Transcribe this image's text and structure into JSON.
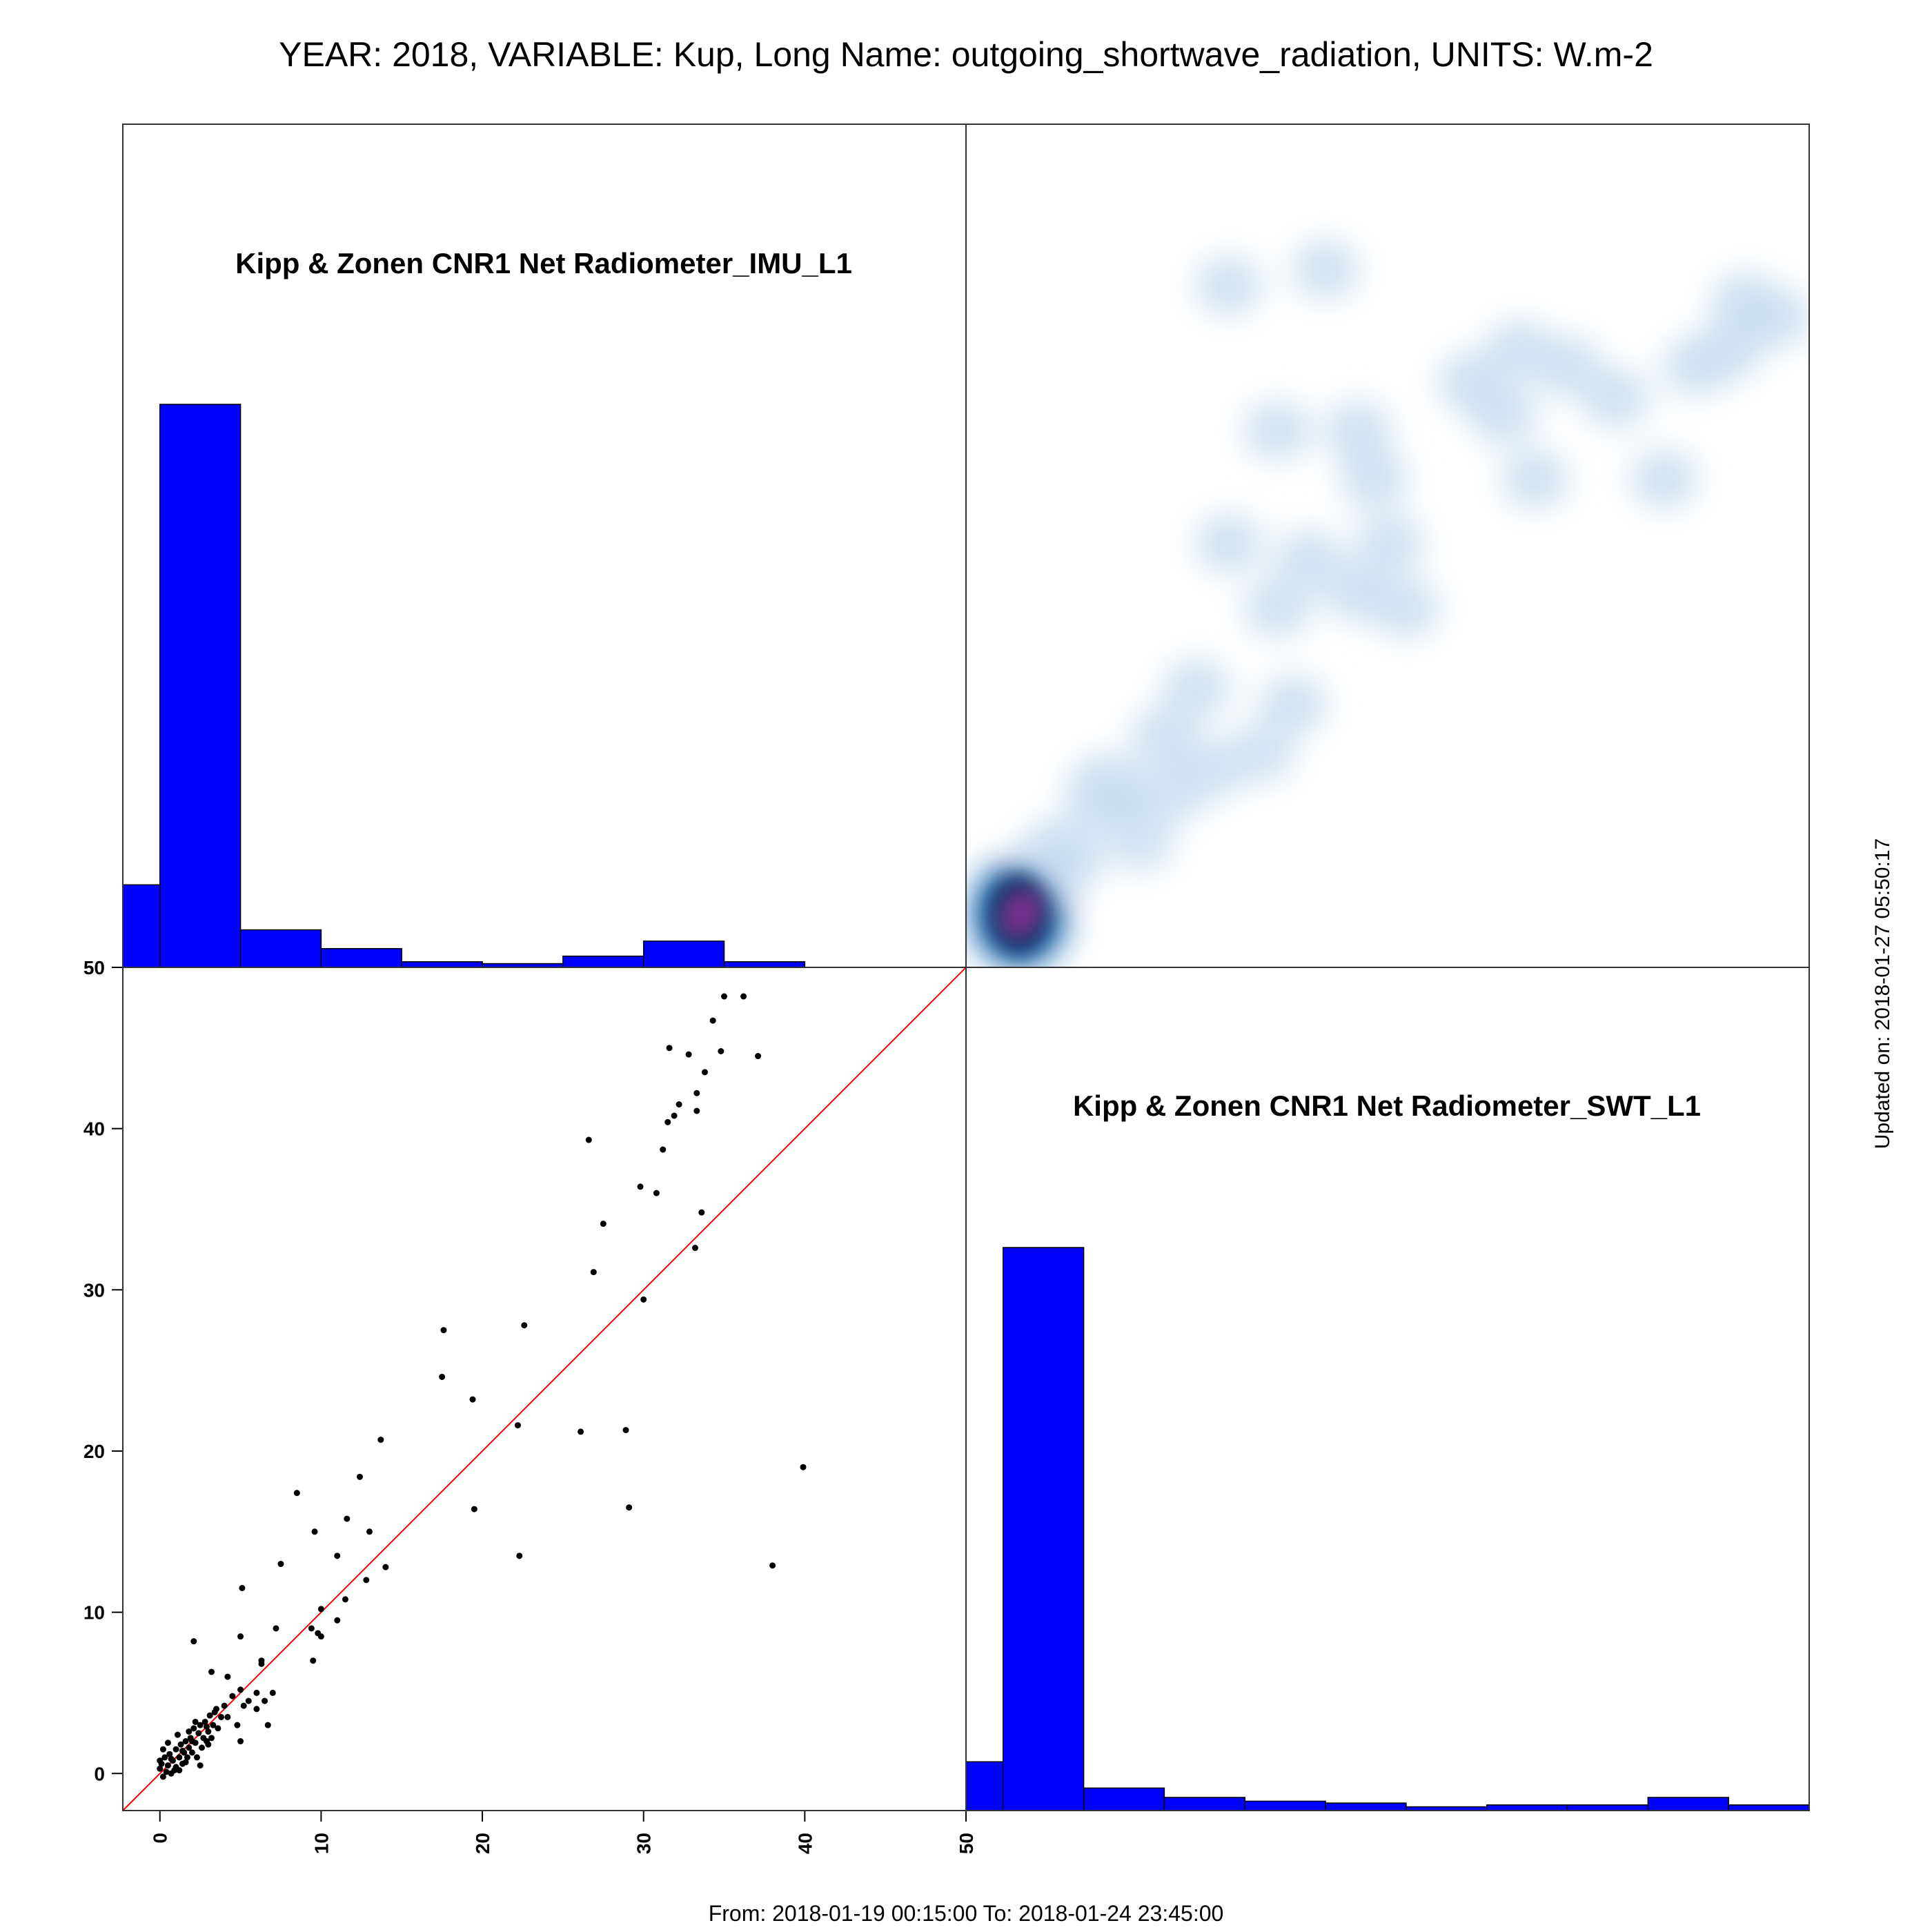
{
  "page": {
    "title": "YEAR: 2018, VARIABLE: Kup, Long Name: outgoing_shortwave_radiation, UNITS: W.m-2",
    "updated": "Updated on: 2018-01-27 05:50:17",
    "range": "From: 2018-01-19 00:15:00 To: 2018-01-24 23:45:00"
  },
  "colors": {
    "histogram_fill": "#0000ff",
    "identity_line": "#ff0000",
    "points": "#000000",
    "density_low": "#c6dbef",
    "density_mid": "#2171b5",
    "density_high": "#08306b",
    "density_peak": "#7b3294"
  },
  "chart_data": [
    {
      "type": "bar",
      "panel": "histogram",
      "label": "Kipp & Zonen CNR1 Net Radiometer_IMU_L1",
      "bin_edges": [
        -2.3,
        0,
        5,
        10,
        15,
        20,
        25,
        30,
        35,
        40
      ],
      "counts": [
        44,
        300,
        20,
        10,
        3,
        2,
        6,
        14,
        3
      ]
    },
    {
      "type": "heatmap",
      "panel": "density",
      "xlim": [
        -2.3,
        50
      ],
      "ylim": [
        -2.3,
        50
      ],
      "blobs": [
        {
          "x": 1.0,
          "y": 1.0,
          "w": 1.0
        },
        {
          "x": 3.5,
          "y": 4.5,
          "w": 0.5
        },
        {
          "x": 6.5,
          "y": 8.5,
          "w": 0.45
        },
        {
          "x": 10,
          "y": 12,
          "w": 0.3
        },
        {
          "x": 12,
          "y": 15,
          "w": 0.3
        },
        {
          "x": 8.5,
          "y": 5.5,
          "w": 0.25
        },
        {
          "x": 10.5,
          "y": 8.5,
          "w": 0.25
        },
        {
          "x": 13,
          "y": 10,
          "w": 0.25
        },
        {
          "x": 16,
          "y": 11,
          "w": 0.25
        },
        {
          "x": 18,
          "y": 14,
          "w": 0.3
        },
        {
          "x": 14,
          "y": 24,
          "w": 0.3
        },
        {
          "x": 17,
          "y": 20,
          "w": 0.3
        },
        {
          "x": 22,
          "y": 21,
          "w": 0.3
        },
        {
          "x": 25,
          "y": 20,
          "w": 0.3
        },
        {
          "x": 24,
          "y": 24,
          "w": 0.3
        },
        {
          "x": 19,
          "y": 23,
          "w": 0.3
        },
        {
          "x": 17,
          "y": 31,
          "w": 0.3
        },
        {
          "x": 22,
          "y": 31,
          "w": 0.3
        },
        {
          "x": 23,
          "y": 28,
          "w": 0.3
        },
        {
          "x": 14,
          "y": 40,
          "w": 0.3
        },
        {
          "x": 20,
          "y": 41,
          "w": 0.3
        },
        {
          "x": 31,
          "y": 32,
          "w": 0.3
        },
        {
          "x": 33,
          "y": 28,
          "w": 0.3
        },
        {
          "x": 32,
          "y": 36,
          "w": 0.3
        },
        {
          "x": 35,
          "y": 35,
          "w": 0.3
        },
        {
          "x": 38,
          "y": 33,
          "w": 0.3
        },
        {
          "x": 41,
          "y": 28,
          "w": 0.3
        },
        {
          "x": 43,
          "y": 35,
          "w": 0.3
        },
        {
          "x": 45,
          "y": 36,
          "w": 0.3
        },
        {
          "x": 46,
          "y": 39,
          "w": 0.3
        },
        {
          "x": 48,
          "y": 38,
          "w": 0.3
        },
        {
          "x": 29,
          "y": 34,
          "w": 0.3
        }
      ]
    },
    {
      "type": "scatter",
      "panel": "scatter",
      "xlim": [
        -2.3,
        50
      ],
      "ylim": [
        -2.3,
        50
      ],
      "identity_line": true,
      "x_ticks": [
        0,
        10,
        20,
        30,
        40,
        50
      ],
      "y_ticks": [
        0,
        10,
        20,
        30,
        40,
        50
      ],
      "points": [
        [
          0.0,
          0.3
        ],
        [
          0.0,
          0.8
        ],
        [
          0.2,
          -0.2
        ],
        [
          0.3,
          1.0
        ],
        [
          0.5,
          0.5
        ],
        [
          0.6,
          1.2
        ],
        [
          0.7,
          0.0
        ],
        [
          0.8,
          0.8
        ],
        [
          1.0,
          1.5
        ],
        [
          1.0,
          0.4
        ],
        [
          1.2,
          1.0
        ],
        [
          1.3,
          1.8
        ],
        [
          1.4,
          0.6
        ],
        [
          1.5,
          1.3
        ],
        [
          1.6,
          2.0
        ],
        [
          1.7,
          1.0
        ],
        [
          1.8,
          1.6
        ],
        [
          1.9,
          2.2
        ],
        [
          2.0,
          1.3
        ],
        [
          2.1,
          2.8
        ],
        [
          2.2,
          1.9
        ],
        [
          2.3,
          1.0
        ],
        [
          2.4,
          2.5
        ],
        [
          2.5,
          3.0
        ],
        [
          2.6,
          1.6
        ],
        [
          2.7,
          2.2
        ],
        [
          2.8,
          3.2
        ],
        [
          2.9,
          2.0
        ],
        [
          3.0,
          2.6
        ],
        [
          3.1,
          3.6
        ],
        [
          3.2,
          2.2
        ],
        [
          3.3,
          3.0
        ],
        [
          3.5,
          4.0
        ],
        [
          3.6,
          2.8
        ],
        [
          3.8,
          3.5
        ],
        [
          0.4,
          0.1
        ],
        [
          0.9,
          0.2
        ],
        [
          1.1,
          2.4
        ],
        [
          1.6,
          0.7
        ],
        [
          2.0,
          2.0
        ],
        [
          2.5,
          0.5
        ],
        [
          3.0,
          1.8
        ],
        [
          0.2,
          1.5
        ],
        [
          0.5,
          1.9
        ],
        [
          1.8,
          2.6
        ],
        [
          2.2,
          3.2
        ],
        [
          0.1,
          0.6
        ],
        [
          1.4,
          1.4
        ],
        [
          2.9,
          2.9
        ],
        [
          3.4,
          3.8
        ],
        [
          0.7,
          0.9
        ],
        [
          1.2,
          0.2
        ],
        [
          4.0,
          4.2
        ],
        [
          4.2,
          3.5
        ],
        [
          4.5,
          4.8
        ],
        [
          4.8,
          3.0
        ],
        [
          5.0,
          2.0
        ],
        [
          5.0,
          5.2
        ],
        [
          5.2,
          4.2
        ],
        [
          5.5,
          4.5
        ],
        [
          6.0,
          4.0
        ],
        [
          6.0,
          5.0
        ],
        [
          6.5,
          4.5
        ],
        [
          6.3,
          6.8
        ],
        [
          6.7,
          3.0
        ],
        [
          7.0,
          5.0
        ],
        [
          7.5,
          13.0
        ],
        [
          2.1,
          8.2
        ],
        [
          3.2,
          6.3
        ],
        [
          4.2,
          6.0
        ],
        [
          5.0,
          8.5
        ],
        [
          5.1,
          11.5
        ],
        [
          6.3,
          7.0
        ],
        [
          7.2,
          9.0
        ],
        [
          9.4,
          9.0
        ],
        [
          9.5,
          7.0
        ],
        [
          9.8,
          8.7
        ],
        [
          10.0,
          8.5
        ],
        [
          10.0,
          10.2
        ],
        [
          11.0,
          9.5
        ],
        [
          11.0,
          13.5
        ],
        [
          11.5,
          10.8
        ],
        [
          9.6,
          15.0
        ],
        [
          11.6,
          15.8
        ],
        [
          12.4,
          18.4
        ],
        [
          12.8,
          12.0
        ],
        [
          13.0,
          15.0
        ],
        [
          13.7,
          20.7
        ],
        [
          14.0,
          12.8
        ],
        [
          8.5,
          17.4
        ],
        [
          17.5,
          24.6
        ],
        [
          17.6,
          27.5
        ],
        [
          19.4,
          23.2
        ],
        [
          19.5,
          16.4
        ],
        [
          22.2,
          21.6
        ],
        [
          22.3,
          13.5
        ],
        [
          22.6,
          27.8
        ],
        [
          26.1,
          21.2
        ],
        [
          26.6,
          39.3
        ],
        [
          26.9,
          31.1
        ],
        [
          27.5,
          34.1
        ],
        [
          28.9,
          21.3
        ],
        [
          29.1,
          16.5
        ],
        [
          29.8,
          36.4
        ],
        [
          30.0,
          29.4
        ],
        [
          30.8,
          36.0
        ],
        [
          31.2,
          38.7
        ],
        [
          31.5,
          40.4
        ],
        [
          31.6,
          45.0
        ],
        [
          31.9,
          40.8
        ],
        [
          32.2,
          41.5
        ],
        [
          32.8,
          44.6
        ],
        [
          33.2,
          32.6
        ],
        [
          33.3,
          41.1
        ],
        [
          33.3,
          42.2
        ],
        [
          33.6,
          34.8
        ],
        [
          33.8,
          43.5
        ],
        [
          34.3,
          46.7
        ],
        [
          34.8,
          44.8
        ],
        [
          35.0,
          48.2
        ],
        [
          36.2,
          48.2
        ],
        [
          37.1,
          44.5
        ],
        [
          38.0,
          12.9
        ],
        [
          39.9,
          19.0
        ]
      ]
    },
    {
      "type": "bar",
      "panel": "histogram",
      "label": "Kipp & Zonen CNR1 Net Radiometer_SWT_L1",
      "bin_edges": [
        -2.3,
        0,
        5,
        10,
        15,
        20,
        25,
        30,
        35,
        40,
        45,
        50
      ],
      "counts": [
        26,
        300,
        12,
        7,
        5,
        4,
        2,
        3,
        3,
        7,
        3
      ]
    }
  ]
}
